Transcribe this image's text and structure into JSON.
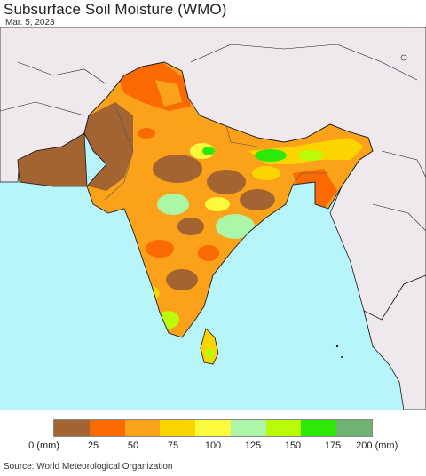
{
  "header": {
    "title": "Subsurface Soil Moisture (WMO)",
    "date": "Mar. 5, 2023"
  },
  "map": {
    "background_colors": {
      "ocean": "#b8f5fb",
      "land_outside": "#efe9ee",
      "border": "#1a1a1a"
    }
  },
  "legend": {
    "colors": [
      "#a36431",
      "#fb6a00",
      "#fba11a",
      "#fcd400",
      "#fcfa3d",
      "#acf7a7",
      "#b9fb09",
      "#2ee80a",
      "#70b270"
    ],
    "ticks": [
      "0 (mm)",
      "25",
      "50",
      "75",
      "100",
      "125",
      "150",
      "175",
      "200 (mm)"
    ]
  },
  "footer": {
    "source": "Source: World Meteorological Organization"
  }
}
